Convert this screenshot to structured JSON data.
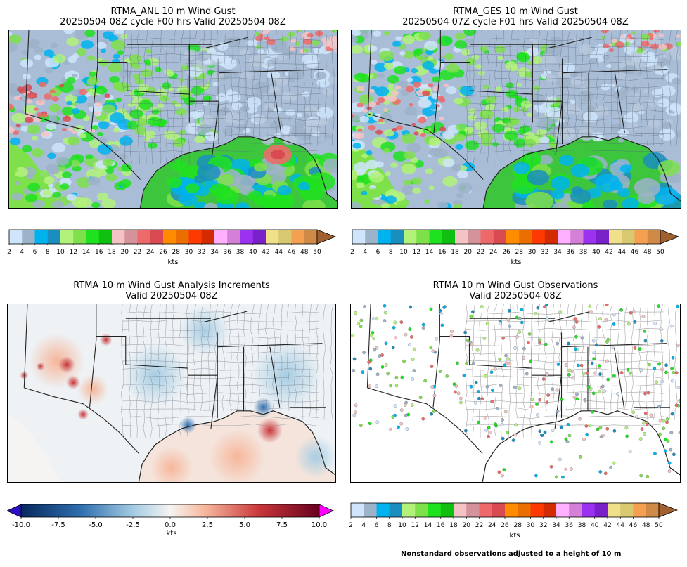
{
  "panels": [
    {
      "id": "anl",
      "title1": "RTMA_ANL 10 m Wind Gust",
      "title2": "20250504 08Z cycle F00 hrs Valid 20250504 08Z"
    },
    {
      "id": "ges",
      "title1": "RTMA_GES 10 m Wind Gust",
      "title2": "20250504 07Z cycle F01 hrs Valid 20250504 08Z"
    },
    {
      "id": "inc",
      "title1": "RTMA 10 m Wind Gust Analysis Increments",
      "title2": "Valid 20250504 08Z"
    },
    {
      "id": "obs",
      "title1": "RTMA 10 m Wind Gust Observations",
      "title2": "Valid 20250504 08Z"
    }
  ],
  "gust_colorbar": {
    "unit_label": "kts",
    "ticks": [
      "2",
      "4",
      "6",
      "8",
      "10",
      "12",
      "14",
      "16",
      "18",
      "20",
      "22",
      "24",
      "26",
      "28",
      "30",
      "32",
      "34",
      "36",
      "38",
      "40",
      "42",
      "44",
      "46",
      "48",
      "50"
    ],
    "colors": [
      "#cfe5fb",
      "#9db3c9",
      "#00b3ee",
      "#1a8fbf",
      "#b3f27a",
      "#7ee04a",
      "#1ee21e",
      "#10c010",
      "#f4c4c4",
      "#d4939a",
      "#ee6a6a",
      "#d94a52",
      "#ff8c00",
      "#ea6f00",
      "#ff3a00",
      "#d42a00",
      "#ffb0ff",
      "#d480d8",
      "#9b32f0",
      "#7a20c8",
      "#f0e08a",
      "#d8c870",
      "#f4a050",
      "#d08a48"
    ],
    "extend_color": "#a06030"
  },
  "increment_colorbar": {
    "unit_label": "kts",
    "ticks": [
      "-10.0",
      "-7.5",
      "-5.0",
      "-2.5",
      "0.0",
      "2.5",
      "5.0",
      "7.5",
      "10.0"
    ],
    "min_extend_color": "#2c10c8",
    "max_extend_color": "#ff00ff"
  },
  "footnote": "Nonstandard observations adjusted to a height of 10 m"
}
